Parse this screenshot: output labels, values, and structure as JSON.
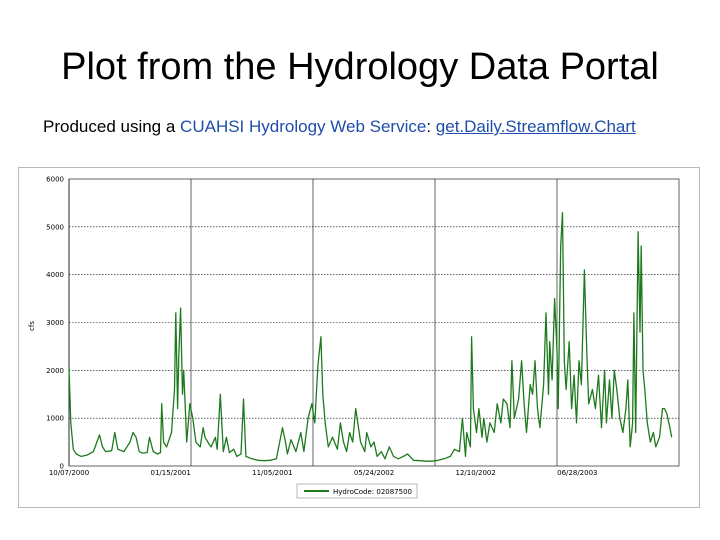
{
  "slide": {
    "title": "Plot from the Hydrology Data Portal",
    "subtitle_prefix": "Produced using a ",
    "subtitle_service": "CUAHSI Hydrology Web Service",
    "subtitle_colon": ": ",
    "subtitle_link": "get.Daily.Streamflow.Chart"
  },
  "colors": {
    "line": "#1e7a1e",
    "accent_text": "#1f4ea8"
  },
  "chart_data": {
    "type": "line",
    "title": "",
    "xlabel": "",
    "ylabel": "cfs",
    "ylim": [
      0,
      6000
    ],
    "yticks": [
      0,
      1000,
      2000,
      3000,
      4000,
      5000,
      6000
    ],
    "ytick_labels": [
      "0",
      "1000",
      "2000",
      "3000",
      "4000",
      "5000",
      "6000"
    ],
    "xticks": [
      "10/07/2000",
      "01/15/2001",
      "11/05/2001",
      "05/24/2002",
      "12/10/2002",
      "06/28/2003"
    ],
    "x_day_range": [
      0,
      1000
    ],
    "vertical_grid_days": [
      0,
      200,
      400,
      600,
      800
    ],
    "grid": "dotted horizontal, solid vertical",
    "legend": {
      "placement": "bottom-center",
      "label": "HydroCode: 02087500"
    },
    "series": [
      {
        "name": "HydroCode: 02087500",
        "points": [
          [
            0,
            2050
          ],
          [
            3,
            900
          ],
          [
            7,
            350
          ],
          [
            12,
            250
          ],
          [
            20,
            200
          ],
          [
            30,
            230
          ],
          [
            40,
            300
          ],
          [
            50,
            650
          ],
          [
            55,
            400
          ],
          [
            60,
            300
          ],
          [
            70,
            320
          ],
          [
            75,
            700
          ],
          [
            80,
            350
          ],
          [
            90,
            300
          ],
          [
            100,
            500
          ],
          [
            105,
            700
          ],
          [
            110,
            600
          ],
          [
            115,
            300
          ],
          [
            120,
            270
          ],
          [
            128,
            280
          ],
          [
            132,
            600
          ],
          [
            138,
            300
          ],
          [
            145,
            250
          ],
          [
            150,
            280
          ],
          [
            152,
            1300
          ],
          [
            155,
            500
          ],
          [
            160,
            400
          ],
          [
            168,
            700
          ],
          [
            173,
            1600
          ],
          [
            175,
            3200
          ],
          [
            178,
            1200
          ],
          [
            180,
            2300
          ],
          [
            183,
            3300
          ],
          [
            186,
            1500
          ],
          [
            188,
            2000
          ],
          [
            190,
            1400
          ],
          [
            193,
            500
          ],
          [
            198,
            1300
          ],
          [
            203,
            1000
          ],
          [
            208,
            500
          ],
          [
            215,
            400
          ],
          [
            220,
            800
          ],
          [
            223,
            600
          ],
          [
            230,
            450
          ],
          [
            233,
            400
          ],
          [
            240,
            600
          ],
          [
            243,
            350
          ],
          [
            248,
            1500
          ],
          [
            253,
            300
          ],
          [
            258,
            600
          ],
          [
            263,
            280
          ],
          [
            270,
            350
          ],
          [
            275,
            200
          ],
          [
            282,
            250
          ],
          [
            286,
            1400
          ],
          [
            290,
            200
          ],
          [
            300,
            150
          ],
          [
            310,
            120
          ],
          [
            320,
            110
          ],
          [
            330,
            120
          ],
          [
            340,
            150
          ],
          [
            350,
            800
          ],
          [
            355,
            500
          ],
          [
            358,
            250
          ],
          [
            364,
            550
          ],
          [
            372,
            300
          ],
          [
            380,
            700
          ],
          [
            385,
            300
          ],
          [
            392,
            1000
          ],
          [
            398,
            1300
          ],
          [
            403,
            900
          ],
          [
            408,
            2100
          ],
          [
            413,
            2700
          ],
          [
            416,
            1500
          ],
          [
            420,
            900
          ],
          [
            425,
            400
          ],
          [
            432,
            600
          ],
          [
            440,
            350
          ],
          [
            445,
            900
          ],
          [
            450,
            500
          ],
          [
            455,
            300
          ],
          [
            460,
            700
          ],
          [
            465,
            500
          ],
          [
            470,
            1200
          ],
          [
            478,
            500
          ],
          [
            485,
            300
          ],
          [
            488,
            700
          ],
          [
            495,
            400
          ],
          [
            500,
            500
          ],
          [
            505,
            200
          ],
          [
            512,
            300
          ],
          [
            518,
            150
          ],
          [
            525,
            400
          ],
          [
            532,
            200
          ],
          [
            540,
            150
          ],
          [
            548,
            200
          ],
          [
            555,
            250
          ],
          [
            565,
            120
          ],
          [
            575,
            110
          ],
          [
            585,
            100
          ],
          [
            595,
            100
          ],
          [
            605,
            120
          ],
          [
            615,
            150
          ],
          [
            625,
            200
          ],
          [
            632,
            350
          ],
          [
            640,
            300
          ],
          [
            645,
            1000
          ],
          [
            650,
            200
          ],
          [
            652,
            700
          ],
          [
            658,
            400
          ],
          [
            660,
            2700
          ],
          [
            663,
            1200
          ],
          [
            668,
            700
          ],
          [
            672,
            1200
          ],
          [
            677,
            600
          ],
          [
            680,
            1000
          ],
          [
            685,
            500
          ],
          [
            690,
            900
          ],
          [
            697,
            700
          ],
          [
            702,
            1300
          ],
          [
            708,
            900
          ],
          [
            712,
            1400
          ],
          [
            718,
            1300
          ],
          [
            723,
            800
          ],
          [
            726,
            2200
          ],
          [
            730,
            1000
          ],
          [
            737,
            1400
          ],
          [
            742,
            2200
          ],
          [
            746,
            1300
          ],
          [
            750,
            700
          ],
          [
            756,
            1700
          ],
          [
            760,
            1500
          ],
          [
            764,
            2200
          ],
          [
            768,
            1200
          ],
          [
            772,
            800
          ],
          [
            778,
            1700
          ],
          [
            782,
            3200
          ],
          [
            786,
            1500
          ],
          [
            788,
            2600
          ],
          [
            792,
            1800
          ],
          [
            796,
            3500
          ],
          [
            800,
            2400
          ],
          [
            802,
            1200
          ],
          [
            806,
            4600
          ],
          [
            809,
            5300
          ],
          [
            812,
            2200
          ],
          [
            815,
            1600
          ],
          [
            820,
            2600
          ],
          [
            824,
            1200
          ],
          [
            828,
            1900
          ],
          [
            832,
            900
          ],
          [
            836,
            2200
          ],
          [
            840,
            1700
          ],
          [
            845,
            4100
          ],
          [
            849,
            2300
          ],
          [
            852,
            1300
          ],
          [
            858,
            1600
          ],
          [
            863,
            1200
          ],
          [
            868,
            1900
          ],
          [
            873,
            800
          ],
          [
            878,
            2000
          ],
          [
            881,
            900
          ],
          [
            886,
            1800
          ],
          [
            890,
            1000
          ],
          [
            894,
            2000
          ],
          [
            898,
            1600
          ],
          [
            903,
            1000
          ],
          [
            908,
            700
          ],
          [
            913,
            1200
          ],
          [
            916,
            1800
          ],
          [
            920,
            400
          ],
          [
            924,
            900
          ],
          [
            926,
            3200
          ],
          [
            929,
            700
          ],
          [
            933,
            4900
          ],
          [
            936,
            2800
          ],
          [
            938,
            4600
          ],
          [
            941,
            2000
          ],
          [
            944,
            1600
          ],
          [
            948,
            900
          ],
          [
            953,
            500
          ],
          [
            958,
            700
          ],
          [
            962,
            400
          ],
          [
            968,
            600
          ],
          [
            973,
            1200
          ],
          [
            976,
            1200
          ],
          [
            980,
            1100
          ],
          [
            985,
            800
          ],
          [
            988,
            600
          ]
        ]
      }
    ]
  }
}
